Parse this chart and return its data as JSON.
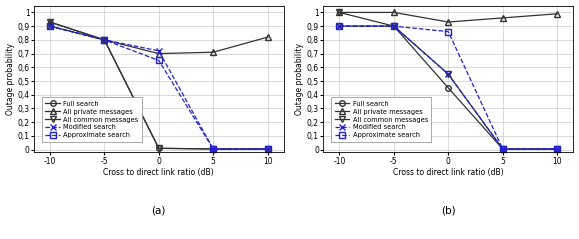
{
  "x": [
    -10,
    -5,
    0,
    5,
    10
  ],
  "subplot_a": {
    "full_search": [
      0.9,
      0.8,
      0.01,
      0.005,
      0.005
    ],
    "all_private": [
      0.93,
      0.8,
      0.7,
      0.71,
      0.82
    ],
    "all_common": [
      0.93,
      0.8,
      0.01,
      0.005,
      0.005
    ],
    "modified_search": [
      0.9,
      0.8,
      0.72,
      0.005,
      0.005
    ],
    "approximate_search": [
      0.9,
      0.8,
      0.65,
      0.005,
      0.005
    ]
  },
  "subplot_b": {
    "full_search": [
      0.9,
      0.9,
      0.45,
      0.005,
      0.005
    ],
    "all_private": [
      1.0,
      1.0,
      0.93,
      0.96,
      0.99
    ],
    "all_common": [
      1.0,
      0.9,
      0.55,
      0.005,
      0.005
    ],
    "modified_search": [
      0.9,
      0.9,
      0.55,
      0.005,
      0.005
    ],
    "approximate_search": [
      0.9,
      0.9,
      0.86,
      0.005,
      0.005
    ]
  },
  "legend_labels": [
    "Full search",
    "All private messages",
    "All common messages",
    "Modified search",
    "Approximate search"
  ],
  "line_colors": [
    "#333333",
    "#333333",
    "#333333",
    "#2222cc",
    "#2222cc"
  ],
  "line_styles": [
    "-",
    "-",
    "-",
    "--",
    "--"
  ],
  "markers": [
    "o",
    "^",
    "v",
    "x",
    "s"
  ],
  "xlabel": "Cross to direct link ratio (dB)",
  "ylabel": "Outage probability",
  "xlim": [
    -11.5,
    11.5
  ],
  "ylim": [
    -0.02,
    1.05
  ],
  "yticks": [
    0,
    0.1,
    0.2,
    0.3,
    0.4,
    0.5,
    0.6,
    0.7,
    0.8,
    0.9,
    1
  ],
  "ytick_labels": [
    "0",
    "0,1",
    "0,2",
    "0,3",
    "0,4",
    "0,5",
    "0,6",
    "0,7",
    "0,8",
    "0,9",
    "1"
  ],
  "xticks": [
    -10,
    -5,
    0,
    5,
    10
  ],
  "label_a": "(a)",
  "label_b": "(b)",
  "fig_width": 5.79,
  "fig_height": 2.39,
  "dpi": 100
}
